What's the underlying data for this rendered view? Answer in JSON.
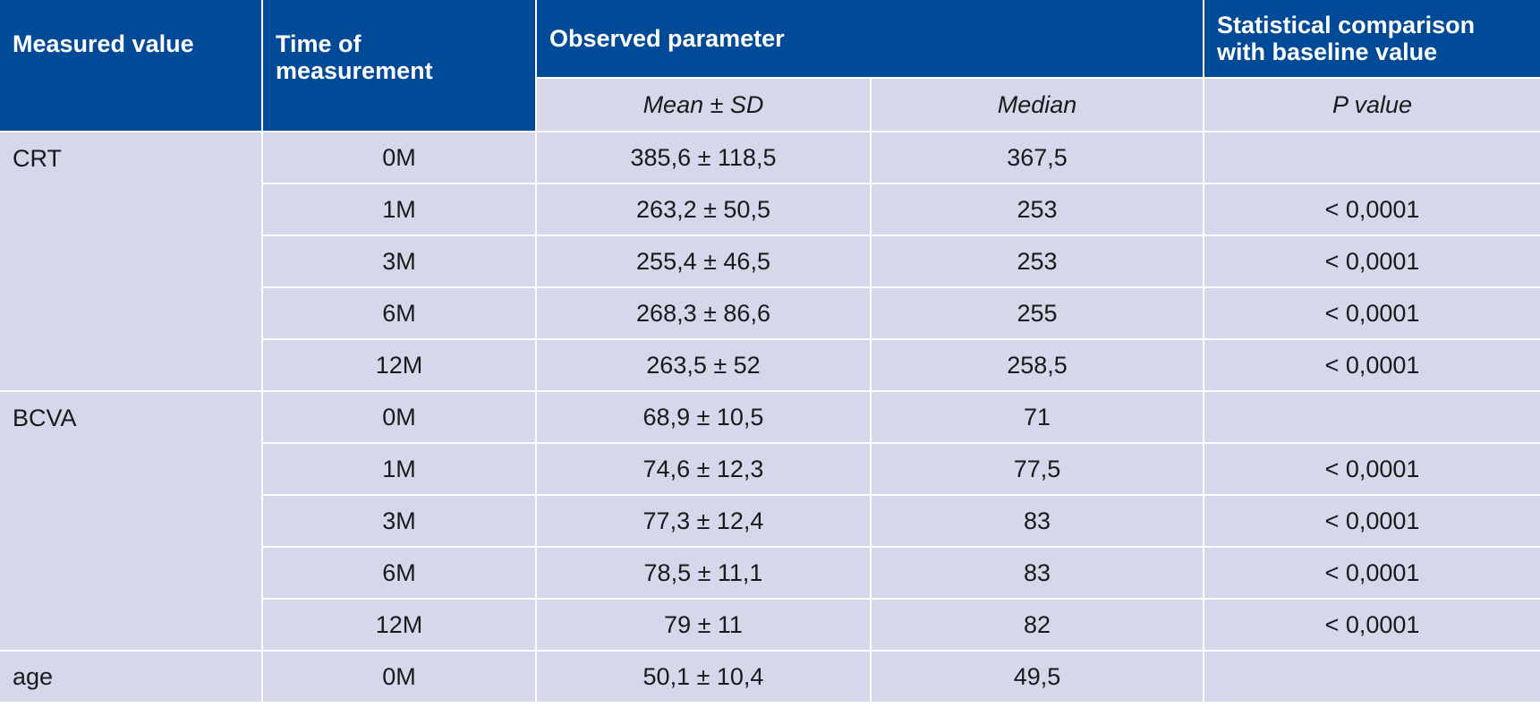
{
  "header": {
    "measured_value": "Measured value",
    "time_of_measurement": "Time of measurement",
    "observed_parameter": "Observed parameter",
    "statistical_comparison": "Statistical comparison with baseline value",
    "mean_sd": "Mean ± SD",
    "median": "Median",
    "p_value": "P value"
  },
  "groups": [
    {
      "name": "CRT",
      "rows": [
        {
          "time": "0M",
          "mean_sd": "385,6 ± 118,5",
          "median": "367,5",
          "p": ""
        },
        {
          "time": "1M",
          "mean_sd": "263,2 ± 50,5",
          "median": "253",
          "p": "< 0,0001"
        },
        {
          "time": "3M",
          "mean_sd": "255,4 ± 46,5",
          "median": "253",
          "p": "< 0,0001"
        },
        {
          "time": "6M",
          "mean_sd": "268,3 ± 86,6",
          "median": "255",
          "p": "< 0,0001"
        },
        {
          "time": "12M",
          "mean_sd": "263,5 ± 52",
          "median": "258,5",
          "p": "< 0,0001"
        }
      ]
    },
    {
      "name": "BCVA",
      "rows": [
        {
          "time": "0M",
          "mean_sd": "68,9 ± 10,5",
          "median": "71",
          "p": ""
        },
        {
          "time": "1M",
          "mean_sd": "74,6 ± 12,3",
          "median": "77,5",
          "p": "< 0,0001"
        },
        {
          "time": "3M",
          "mean_sd": "77,3 ± 12,4",
          "median": "83",
          "p": "< 0,0001"
        },
        {
          "time": "6M",
          "mean_sd": "78,5 ± 11,1",
          "median": "83",
          "p": "< 0,0001"
        },
        {
          "time": "12M",
          "mean_sd": "79 ± 11",
          "median": "82",
          "p": "< 0,0001"
        }
      ]
    },
    {
      "name": "age",
      "rows": [
        {
          "time": "0M",
          "mean_sd": "50,1 ± 10,4",
          "median": "49,5",
          "p": ""
        }
      ]
    }
  ]
}
